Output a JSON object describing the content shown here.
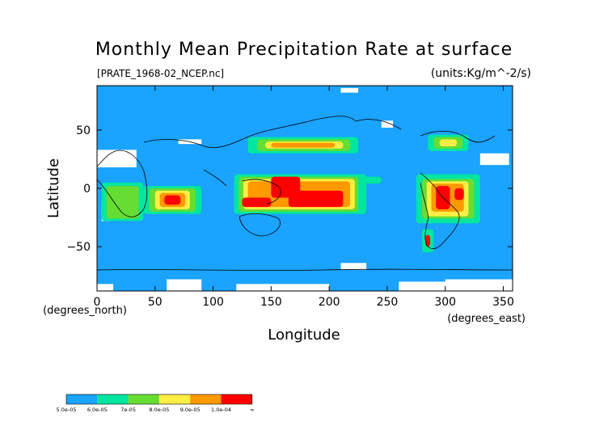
{
  "chart_data": {
    "type": "heatmap",
    "title": "Monthly Mean Precipitation Rate at surface",
    "subtitle_left": "[PRATE_1968-02_NCEP.nc]",
    "subtitle_right": "(units:Kg/m^-2/s)",
    "xlabel": "Longitude",
    "ylabel": "Latitude",
    "x_unit_label": "(degrees_east)",
    "y_unit_label": "(degrees_north)",
    "xlim": [
      0,
      358
    ],
    "ylim": [
      -88,
      88
    ],
    "x_ticks": [
      0,
      50,
      100,
      150,
      200,
      250,
      300,
      350
    ],
    "y_ticks": [
      -50,
      0,
      50
    ],
    "grid": false,
    "legend_placement": "bottom-left",
    "colorbar": {
      "labels": [
        "5.0e-05",
        "6.0e-05",
        "7e-05",
        "8.0e-05",
        "9.0e-05",
        "1.0e-04",
        "∞"
      ],
      "colors": [
        "#1aa3ff",
        "#00e6a0",
        "#66dd33",
        "#ffee44",
        "#ff9900",
        "#ff0000"
      ]
    },
    "background_color": "#1aa3ff",
    "regions": [
      {
        "level": 0,
        "lon": [
          0,
          34
        ],
        "lat": [
          18,
          33
        ]
      },
      {
        "level": 0,
        "lon": [
          0,
          14
        ],
        "lat": [
          -82,
          -88
        ]
      },
      {
        "level": 0,
        "lon": [
          60,
          90
        ],
        "lat": [
          -78,
          -88
        ]
      },
      {
        "level": 0,
        "lon": [
          120,
          200
        ],
        "lat": [
          -82,
          -88
        ]
      },
      {
        "level": 0,
        "lon": [
          260,
          300
        ],
        "lat": [
          -80,
          -88
        ]
      },
      {
        "level": 0,
        "lon": [
          300,
          358
        ],
        "lat": [
          -78,
          -88
        ]
      },
      {
        "level": 0,
        "lon": [
          4,
          12
        ],
        "lat": [
          -12,
          -28
        ]
      },
      {
        "level": 0,
        "lon": [
          210,
          232
        ],
        "lat": [
          -64,
          -70
        ]
      },
      {
        "level": 0,
        "lon": [
          245,
          255
        ],
        "lat": [
          52,
          58
        ]
      },
      {
        "level": 0,
        "lon": [
          330,
          355
        ],
        "lat": [
          20,
          30
        ]
      },
      {
        "level": 0,
        "lon": [
          70,
          90
        ],
        "lat": [
          38,
          42
        ]
      },
      {
        "level": 0,
        "lon": [
          210,
          225
        ],
        "lat": [
          82,
          86
        ]
      },
      {
        "level": 1,
        "lon": [
          118,
          232
        ],
        "lat": [
          -22,
          12
        ]
      },
      {
        "level": 1,
        "lon": [
          4,
          40
        ],
        "lat": [
          -28,
          5
        ]
      },
      {
        "level": 1,
        "lon": [
          40,
          90
        ],
        "lat": [
          -22,
          2
        ]
      },
      {
        "level": 1,
        "lon": [
          275,
          330
        ],
        "lat": [
          -30,
          12
        ]
      },
      {
        "level": 1,
        "lon": [
          130,
          225
        ],
        "lat": [
          30,
          44
        ]
      },
      {
        "level": 1,
        "lon": [
          285,
          320
        ],
        "lat": [
          32,
          46
        ]
      },
      {
        "level": 1,
        "lon": [
          280,
          290
        ],
        "lat": [
          -55,
          -35
        ]
      },
      {
        "level": 1,
        "lon": [
          215,
          245
        ],
        "lat": [
          4,
          10
        ]
      },
      {
        "level": 2,
        "lon": [
          122,
          225
        ],
        "lat": [
          -20,
          10
        ]
      },
      {
        "level": 2,
        "lon": [
          8,
          36
        ],
        "lat": [
          -26,
          2
        ]
      },
      {
        "level": 2,
        "lon": [
          45,
          85
        ],
        "lat": [
          -20,
          0
        ]
      },
      {
        "level": 2,
        "lon": [
          280,
          325
        ],
        "lat": [
          -26,
          8
        ]
      },
      {
        "level": 2,
        "lon": [
          138,
          218
        ],
        "lat": [
          32,
          42
        ]
      },
      {
        "level": 2,
        "lon": [
          290,
          315
        ],
        "lat": [
          34,
          44
        ]
      },
      {
        "level": 3,
        "lon": [
          126,
          222
        ],
        "lat": [
          -18,
          8
        ]
      },
      {
        "level": 3,
        "lon": [
          50,
          80
        ],
        "lat": [
          -18,
          -2
        ]
      },
      {
        "level": 3,
        "lon": [
          284,
          320
        ],
        "lat": [
          -24,
          6
        ]
      },
      {
        "level": 3,
        "lon": [
          145,
          212
        ],
        "lat": [
          34,
          40
        ]
      },
      {
        "level": 3,
        "lon": [
          295,
          310
        ],
        "lat": [
          36,
          42
        ]
      },
      {
        "level": 4,
        "lon": [
          130,
          218
        ],
        "lat": [
          -16,
          6
        ]
      },
      {
        "level": 4,
        "lon": [
          54,
          76
        ],
        "lat": [
          -16,
          -4
        ]
      },
      {
        "level": 4,
        "lon": [
          288,
          316
        ],
        "lat": [
          -20,
          4
        ]
      },
      {
        "level": 4,
        "lon": [
          150,
          205
        ],
        "lat": [
          35,
          39
        ]
      },
      {
        "level": 5,
        "lon": [
          150,
          175
        ],
        "lat": [
          -8,
          10
        ]
      },
      {
        "level": 5,
        "lon": [
          165,
          212
        ],
        "lat": [
          -16,
          -2
        ]
      },
      {
        "level": 5,
        "lon": [
          125,
          150
        ],
        "lat": [
          -16,
          -8
        ]
      },
      {
        "level": 5,
        "lon": [
          58,
          72
        ],
        "lat": [
          -14,
          -6
        ]
      },
      {
        "level": 5,
        "lon": [
          292,
          304
        ],
        "lat": [
          -18,
          2
        ]
      },
      {
        "level": 5,
        "lon": [
          308,
          316
        ],
        "lat": [
          -10,
          0
        ]
      },
      {
        "level": 5,
        "lon": [
          283,
          287
        ],
        "lat": [
          -50,
          -40
        ]
      }
    ]
  }
}
